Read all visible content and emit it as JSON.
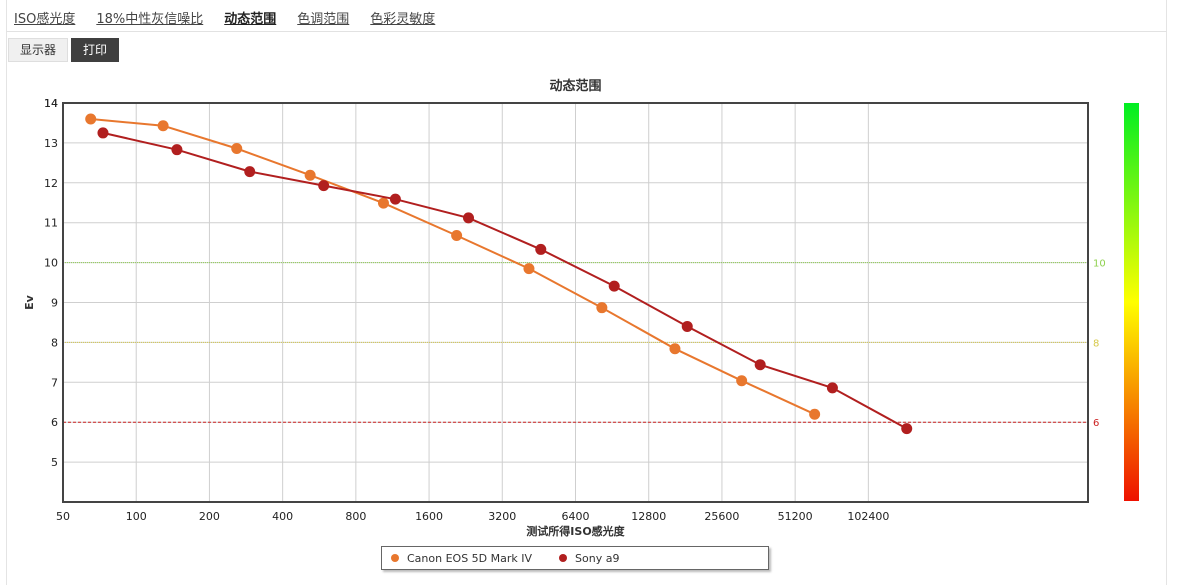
{
  "tabs": [
    {
      "label": "ISO感光度"
    },
    {
      "label": "18%中性灰信噪比"
    },
    {
      "label": "动态范围"
    },
    {
      "label": "色调范围"
    },
    {
      "label": "色彩灵敏度"
    }
  ],
  "active_tab": 2,
  "subtabs": [
    {
      "label": "显示器"
    },
    {
      "label": "打印"
    }
  ],
  "active_subtab": 1,
  "chart_data": {
    "type": "line",
    "title": "动态范围",
    "xlabel": "测试所得ISO感光度",
    "ylabel": "Ev",
    "x_scale": "log2",
    "x_ticks": [
      "50",
      "100",
      "200",
      "400",
      "800",
      "1600",
      "3200",
      "6400",
      "12800",
      "25600",
      "51200",
      "102400"
    ],
    "xlim": [
      50,
      819200
    ],
    "ylim": [
      4,
      14
    ],
    "y_ticks": [
      "5",
      "6",
      "7",
      "8",
      "9",
      "10",
      "11",
      "12",
      "13",
      "14"
    ],
    "grid": true,
    "reference_lines": [
      {
        "value": 10,
        "label": "10",
        "color": "#8fd14f",
        "style": "dotted"
      },
      {
        "value": 8,
        "label": "8",
        "color": "#d6c94a",
        "style": "dotted"
      },
      {
        "value": 6,
        "label": "6",
        "color": "#cc2222",
        "style": "dashed"
      }
    ],
    "series": [
      {
        "name": "Canon EOS 5D Mark IV",
        "color": "#e8772e",
        "points": [
          {
            "x": 65,
            "y": 13.6
          },
          {
            "x": 129,
            "y": 13.43
          },
          {
            "x": 259,
            "y": 12.86
          },
          {
            "x": 519,
            "y": 12.19
          },
          {
            "x": 1039,
            "y": 11.49
          },
          {
            "x": 2077,
            "y": 10.68
          },
          {
            "x": 4119,
            "y": 9.85
          },
          {
            "x": 8214,
            "y": 8.87
          },
          {
            "x": 16410,
            "y": 7.84
          },
          {
            "x": 30861,
            "y": 7.04
          },
          {
            "x": 61580,
            "y": 6.2
          }
        ]
      },
      {
        "name": "Sony a9",
        "color": "#b11f1f",
        "points": [
          {
            "x": 73,
            "y": 13.25
          },
          {
            "x": 147,
            "y": 12.83
          },
          {
            "x": 293,
            "y": 12.28
          },
          {
            "x": 590,
            "y": 11.93
          },
          {
            "x": 1163,
            "y": 11.59
          },
          {
            "x": 2324,
            "y": 11.12
          },
          {
            "x": 4607,
            "y": 10.33
          },
          {
            "x": 9234,
            "y": 9.41
          },
          {
            "x": 18435,
            "y": 8.4
          },
          {
            "x": 36776,
            "y": 7.44
          },
          {
            "x": 72863,
            "y": 6.86
          },
          {
            "x": 147254,
            "y": 5.84
          }
        ]
      }
    ],
    "legend_position": "bottom-center",
    "colorbar": {
      "colors": [
        "#00ee22",
        "#ffff00",
        "#ee1100"
      ]
    }
  }
}
